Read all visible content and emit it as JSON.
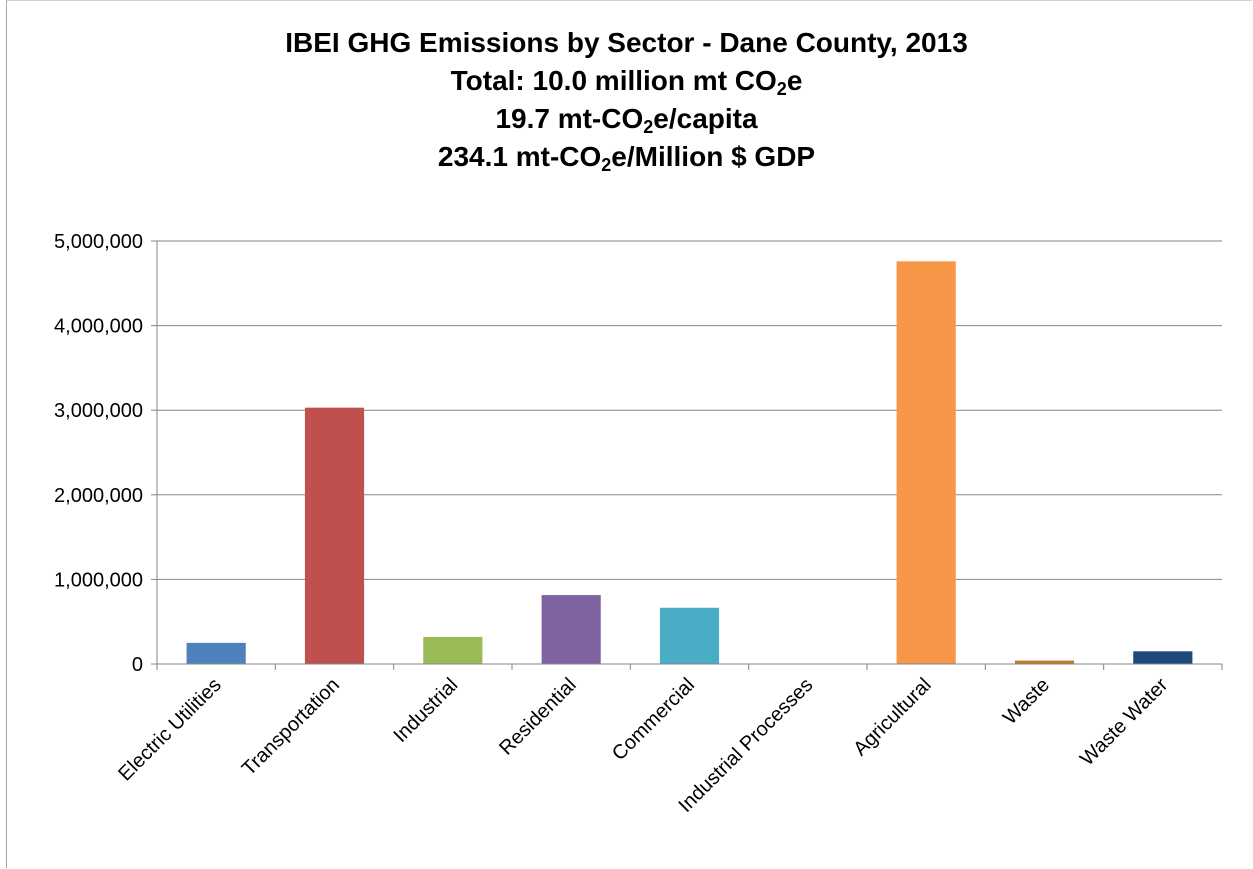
{
  "chart_data": {
    "type": "bar",
    "title_parts": {
      "line1": "IBEI GHG Emissions by Sector - Dane County, 2013",
      "line2_a": "Total: 10.0 million mt CO",
      "line2_sub": "2",
      "line2_b": "e",
      "line3_a": "19.7 mt-CO",
      "line3_sub": "2",
      "line3_b": "e/capita",
      "line4_a": "234.1 mt-CO",
      "line4_sub": "2",
      "line4_b": "e/Million $ GDP"
    },
    "categories": [
      "Electric Utilities",
      "Transportation",
      "Industrial",
      "Residential",
      "Commercial",
      "Industrial Processes",
      "Agricultural",
      "Waste",
      "Waste Water"
    ],
    "values": [
      250000,
      3030000,
      320000,
      815000,
      665000,
      0,
      4760000,
      40000,
      150000
    ],
    "colors": [
      "#4f81bd",
      "#c0504d",
      "#9bbb59",
      "#8064a2",
      "#4bacc6",
      "#f79646",
      "#f79646",
      "#c0782c",
      "#1f497d"
    ],
    "ylim": [
      0,
      5000000
    ],
    "yticks": [
      0,
      1000000,
      2000000,
      3000000,
      4000000,
      5000000
    ],
    "ytick_labels": [
      "0",
      "1,000,000",
      "2,000,000",
      "3,000,000",
      "4,000,000",
      "5,000,000"
    ],
    "xlabel": "",
    "ylabel": "",
    "grid": true,
    "legend": "none"
  }
}
